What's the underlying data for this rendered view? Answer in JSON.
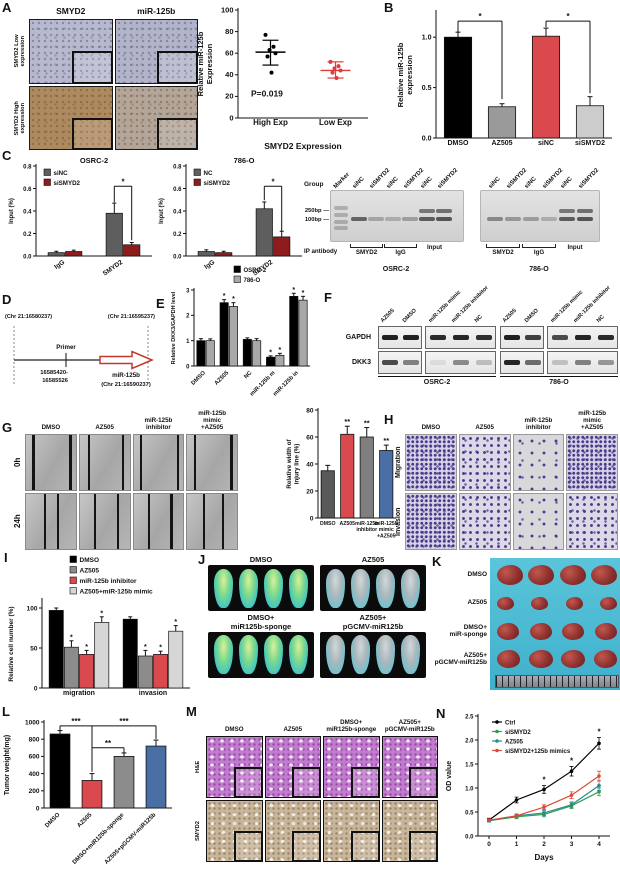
{
  "panels": {
    "A": {
      "label": "A",
      "col_headers": [
        "SMYD2",
        "miR-125b"
      ],
      "row_labels": [
        "SMYD2 Low expression",
        "SMYD2 High expression"
      ]
    },
    "B": {
      "label": "B"
    },
    "C": {
      "label": "C",
      "gel": {
        "group_label": "Group",
        "marker_label": "Marker",
        "lane_labels": [
          "siNC",
          "siSMYD2",
          "siNC",
          "siSMYD2",
          "siNC",
          "siSMYD2"
        ],
        "size_markers": [
          "250bp",
          "100bp"
        ],
        "ip_label": "IP antibody",
        "ip_groups": [
          "SMYD2",
          "IgG",
          "Input"
        ],
        "cell_lines": [
          "OSRC-2",
          "786-O"
        ],
        "intensities": [
          [
            0.8,
            0.35,
            0.3,
            0.4,
            0.85,
            0.9
          ],
          [
            0.55,
            0.45,
            0.42,
            0.3,
            0.85,
            0.9
          ]
        ]
      }
    },
    "D": {
      "label": "D",
      "left_coord": "(Chr 21:16580237)",
      "right_coord": "(Chr 21:16595237)",
      "primer_label": "Primer",
      "primer_region": "16585420-\n16585526",
      "gene_label": "miR-125b",
      "gene_coord": "(Chr 21:16590237)"
    },
    "E": {
      "label": "E"
    },
    "F": {
      "label": "F",
      "row_labels": [
        "GAPDH",
        "DKK3"
      ],
      "cell_lines": [
        "OSRC-2",
        "786-O"
      ],
      "lane_labels": [
        "AZ505",
        "DMSO",
        "miR-125b mimic",
        "miR-125b inhibitor",
        "NC"
      ],
      "bands": {
        "GAPDH": [
          [
            0.95,
            0.95,
            0.9,
            0.92,
            0.88
          ],
          [
            0.95,
            0.8,
            0.75,
            0.92,
            0.9
          ]
        ],
        "DKK3": [
          [
            0.75,
            0.5,
            0.08,
            0.45,
            0.22
          ],
          [
            0.92,
            0.6,
            0.2,
            0.5,
            0.4
          ]
        ]
      }
    },
    "G": {
      "label": "G",
      "col_labels": [
        "DMSO",
        "AZ505",
        "miR-125b\ninhibitor",
        "miR-125b\nmimic\n+AZ505"
      ],
      "row_labels": [
        "0h",
        "24h"
      ],
      "scratch_lines": [
        [
          [
            13,
            87
          ],
          [
            16,
            84
          ],
          [
            13,
            87
          ],
          [
            13,
            86
          ]
        ],
        [
          [
            36,
            62
          ],
          [
            28,
            74
          ],
          [
            29,
            74
          ],
          [
            31,
            69
          ]
        ]
      ]
    },
    "H": {
      "label": "H",
      "col_labels": [
        "DMSO",
        "AZ505",
        "miR-125b\ninhibitor",
        "miR-125b\nmimic\n+AZ505"
      ],
      "row_labels": [
        "Migration",
        "Invasion"
      ],
      "density": [
        [
          "dense",
          "med",
          "sparse",
          "dense"
        ],
        [
          "dense",
          "med",
          "sparse",
          "med"
        ]
      ]
    },
    "I": {
      "label": "I"
    },
    "J": {
      "label": "J",
      "mice_per_group": 4,
      "groups": [
        {
          "name": "DMSO",
          "tone": "bright"
        },
        {
          "name": "AZ505",
          "tone": "dim"
        },
        {
          "name": "DMSO+\nmiR125b-sponge",
          "tone": "bright"
        },
        {
          "name": "AZ505+\npGCMV-miR125b",
          "tone": "dim"
        }
      ]
    },
    "K": {
      "label": "K",
      "per_row": 4,
      "rows": [
        {
          "name": "DMSO",
          "size": 20
        },
        {
          "name": "AZ505",
          "size": 13
        },
        {
          "name": "DMSO+\nmiR-sponge",
          "size": 17
        },
        {
          "name": "AZ505+\npGCMV-miR125b",
          "size": 18
        }
      ]
    },
    "L": {
      "label": "L"
    },
    "M": {
      "label": "M",
      "col_labels": [
        "DMSO",
        "AZ505",
        "DMSO+\nmiR125b-sponge",
        "AZ505+\npGCMV-miR125b"
      ],
      "row_labels": [
        "H&E",
        "SMYD2"
      ],
      "stains": [
        "he",
        "ihc"
      ]
    },
    "N": {
      "label": "N"
    }
  },
  "chart_data": [
    {
      "panel": "A",
      "type": "scatter",
      "ylabel": "Relative miR-125b\nExpression",
      "xlabel": "SMYD2 Expression",
      "ylim": [
        0,
        100
      ],
      "yticks": [
        0,
        20,
        40,
        60,
        80,
        100
      ],
      "ydec": 0,
      "groups": [
        {
          "label": "High Exp",
          "color": "#000000",
          "points": [
            77,
            66,
            63,
            60,
            57,
            42
          ],
          "mean": 61,
          "lo": 49,
          "hi": 72
        },
        {
          "label": "Low Exp",
          "color": "#e03a3a",
          "points": [
            52,
            48,
            46,
            44,
            42,
            37
          ],
          "mean": 44,
          "lo": 37,
          "hi": 52
        }
      ],
      "annotation": {
        "text": "P=0.019",
        "x": 0.1,
        "y": 20
      }
    },
    {
      "panel": "B",
      "type": "bar",
      "ylabel": "Relative miR-125b\nexpression",
      "ylim": [
        0,
        1.25
      ],
      "yticks": [
        0,
        0.5,
        1
      ],
      "ydec": 1,
      "categories": [
        "DMSO",
        "AZ505",
        "siNC",
        "siSMYD2"
      ],
      "values": [
        1.0,
        0.31,
        1.01,
        0.32
      ],
      "errors": [
        0.05,
        0.03,
        0.08,
        0.09
      ],
      "colors": [
        "#000000",
        "#9a9a9a",
        "#d9494e",
        "#cccccc"
      ],
      "brackets": [
        {
          "a": 0,
          "b": 1,
          "y": 1.16,
          "label": "*",
          "d1": 11,
          "d2": 78
        },
        {
          "a": 2,
          "b": 3,
          "y": 1.16,
          "label": "*",
          "d1": 6,
          "d2": 72
        }
      ]
    },
    {
      "panel": "C1",
      "type": "gbar",
      "title": "OSRC-2",
      "ylabel": "Input (%)",
      "ylim": [
        0,
        0.8
      ],
      "yticks": [
        0,
        0.2,
        0.4,
        0.6,
        0.8
      ],
      "ydec": 1,
      "categories": [
        "IgG",
        "SMYD2"
      ],
      "series": [
        {
          "name": "siNC",
          "color": "#5e5e5e",
          "values": [
            0.03,
            0.38
          ],
          "errors": [
            0.012,
            0.09
          ]
        },
        {
          "name": "siSMYD2",
          "color": "#8e1c1c",
          "values": [
            0.04,
            0.1
          ],
          "errors": [
            0.012,
            0.02
          ]
        }
      ],
      "brackets": [
        {
          "a": [
            1,
            0
          ],
          "b": [
            1,
            1
          ],
          "y": 0.62,
          "label": "*",
          "d1": 16,
          "d2": 54
        }
      ]
    },
    {
      "panel": "C2",
      "type": "gbar",
      "title": "786-O",
      "ylabel": "Input (%)",
      "ylim": [
        0,
        0.8
      ],
      "yticks": [
        0,
        0.2,
        0.4,
        0.6,
        0.8
      ],
      "ydec": 1,
      "categories": [
        "IgG",
        "SMYD2"
      ],
      "series": [
        {
          "name": "NC",
          "color": "#5e5e5e",
          "values": [
            0.04,
            0.42
          ],
          "errors": [
            0.015,
            0.06
          ]
        },
        {
          "name": "siSMYD2",
          "color": "#8e1c1c",
          "values": [
            0.03,
            0.17
          ],
          "errors": [
            0.012,
            0.05
          ]
        }
      ],
      "brackets": [
        {
          "a": [
            1,
            0
          ],
          "b": [
            1,
            1
          ],
          "y": 0.62,
          "label": "*",
          "d1": 14,
          "d2": 45
        }
      ]
    },
    {
      "panel": "E",
      "type": "gbar",
      "ylabel": "Relative DKK3/GAPDH level",
      "ylim": [
        0,
        3
      ],
      "yticks": [
        0,
        1,
        2,
        3
      ],
      "ydec": 0,
      "categories": [
        "DMSO",
        "AZ505",
        "NC",
        "miR-125b m",
        "miR-125b in"
      ],
      "series": [
        {
          "name": "OSRC-2",
          "color": "#000000",
          "values": [
            1.0,
            2.5,
            1.05,
            0.35,
            2.75
          ],
          "errors": [
            0.08,
            0.12,
            0.06,
            0.05,
            0.12
          ],
          "stars": [
            "",
            "*",
            "",
            "*",
            "*"
          ]
        },
        {
          "name": "786-O",
          "color": "#a8a8a8",
          "values": [
            1.0,
            2.35,
            1.0,
            0.42,
            2.6
          ],
          "errors": [
            0.07,
            0.15,
            0.08,
            0.08,
            0.15
          ],
          "stars": [
            "",
            "*",
            "",
            "*",
            "*"
          ]
        }
      ]
    },
    {
      "panel": "G",
      "type": "bar",
      "ylabel": "Relative width of\ninjury line (%)",
      "ylim": [
        0,
        80
      ],
      "yticks": [
        0,
        20,
        40,
        60,
        80
      ],
      "ydec": 0,
      "categories": [
        "DMSO",
        "AZ505",
        "miR-125b\ninhibitor",
        "miR-125b\nmimic\n+AZ505"
      ],
      "values": [
        35,
        62,
        60,
        50
      ],
      "errors": [
        4,
        6,
        7,
        4
      ],
      "colors": [
        "#595959",
        "#d9494e",
        "#7f7f7f",
        "#4a6fa5"
      ],
      "stars": [
        "",
        "**",
        "**",
        "**"
      ]
    },
    {
      "panel": "I",
      "type": "gbar",
      "ylabel": "Relative cell number (%)",
      "ylim": [
        0,
        110
      ],
      "yticks": [
        0,
        50,
        100
      ],
      "ydec": 0,
      "categories": [
        "migration",
        "invasion"
      ],
      "series": [
        {
          "name": "DMSO",
          "color": "#000000",
          "values": [
            97,
            86
          ],
          "errors": [
            3,
            3
          ],
          "stars": [
            "",
            ""
          ]
        },
        {
          "name": "AZ505",
          "color": "#8c8c8c",
          "values": [
            51,
            40
          ],
          "errors": [
            8,
            7
          ],
          "stars": [
            "*",
            "*"
          ]
        },
        {
          "name": "miR-125b inhibitor",
          "color": "#d9494e",
          "values": [
            42,
            42
          ],
          "errors": [
            5,
            4
          ],
          "stars": [
            "*",
            "*"
          ]
        },
        {
          "name": "AZ505+miR-125b mimic",
          "color": "#d6d6d6",
          "values": [
            82,
            71
          ],
          "errors": [
            7,
            7
          ],
          "stars": [
            "*",
            "*"
          ]
        }
      ]
    },
    {
      "panel": "L",
      "type": "bar",
      "ylabel": "Tumor weight(mg)",
      "ylim": [
        0,
        1000
      ],
      "yticks": [
        0,
        200,
        400,
        600,
        800,
        1000
      ],
      "ydec": 0,
      "categories": [
        "DMSO",
        "AZ505",
        "DMSO+miR125b-sponge",
        "AZ505+pGCMV-miR125b"
      ],
      "values": [
        860,
        320,
        600,
        720
      ],
      "errors": [
        40,
        80,
        40,
        70
      ],
      "colors": [
        "#000000",
        "#d9494e",
        "#8c8c8c",
        "#4a6fa5"
      ],
      "brackets": [
        {
          "a": 0,
          "b": 1,
          "y": 955,
          "label": "***",
          "d1": 5,
          "d2": 45
        },
        {
          "a": 1,
          "b": 2,
          "y": 700,
          "label": "**",
          "d1": 24,
          "d2": 5
        },
        {
          "a": 1,
          "b": 3,
          "y": 955,
          "label": "***",
          "d1": 45,
          "d2": 13
        }
      ]
    },
    {
      "panel": "N",
      "type": "line",
      "ylabel": "OD value",
      "xlabel": "Days",
      "ylim": [
        0,
        2.5
      ],
      "yticks": [
        0,
        0.5,
        1,
        1.5,
        2,
        2.5
      ],
      "ydec": 1,
      "x": [
        0,
        1,
        2,
        3,
        4
      ],
      "xlim": [
        -0.4,
        4.4
      ],
      "series": [
        {
          "name": "Ctrl",
          "color": "#000000",
          "values": [
            0.33,
            0.75,
            0.97,
            1.35,
            1.93
          ],
          "errors": [
            0.04,
            0.06,
            0.08,
            0.1,
            0.12
          ],
          "stars": [
            "",
            "",
            "*",
            "*",
            "*"
          ]
        },
        {
          "name": "siSMYD2",
          "color": "#2f9e50",
          "values": [
            0.32,
            0.4,
            0.45,
            0.63,
            0.92
          ],
          "errors": [
            0.03,
            0.04,
            0.05,
            0.06,
            0.08
          ]
        },
        {
          "name": "AZ505",
          "color": "#2e8b8b",
          "values": [
            0.32,
            0.42,
            0.48,
            0.65,
            1.05
          ],
          "errors": [
            0.03,
            0.04,
            0.05,
            0.06,
            0.1
          ]
        },
        {
          "name": "siSMYD2+125b mimics",
          "color": "#d94b35",
          "values": [
            0.33,
            0.42,
            0.6,
            0.85,
            1.25
          ],
          "errors": [
            0.03,
            0.04,
            0.05,
            0.07,
            0.1
          ]
        }
      ]
    }
  ]
}
